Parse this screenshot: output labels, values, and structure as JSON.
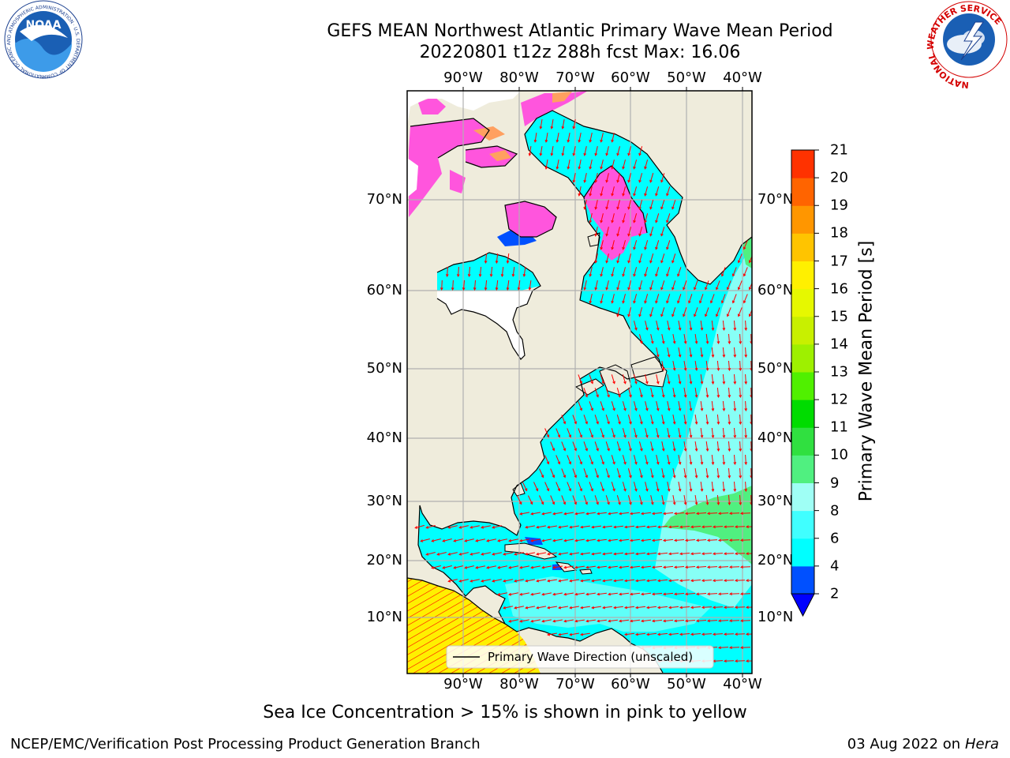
{
  "title": {
    "line1": "GEFS MEAN Northwest Atlantic Primary Wave Mean Period",
    "line2": "20220801 t12z 288h fcst   Max: 16.06"
  },
  "map": {
    "lon_labels": [
      "90°W",
      "80°W",
      "70°W",
      "60°W",
      "50°W",
      "40°W"
    ],
    "lat_labels": [
      "70°N",
      "60°N",
      "50°N",
      "40°N",
      "30°N",
      "20°N",
      "10°N"
    ],
    "legend_label": "Primary Wave Direction (unscaled)",
    "colors": {
      "land": "#efecdc",
      "water_main": "#00ffff",
      "water_light": "#9ffff5",
      "wave_arrow": "#ff0000",
      "ice": "#ff55dd",
      "grid": "#b0b0b0"
    }
  },
  "colorbar": {
    "label": "Primary Wave Mean Period [s]",
    "ticks": [
      "2",
      "4",
      "6",
      "8",
      "9",
      "10",
      "11",
      "12",
      "13",
      "14",
      "15",
      "16",
      "17",
      "18",
      "19",
      "20",
      "21"
    ],
    "colors": [
      "#0050ff",
      "#00ffff",
      "#40ffff",
      "#9ffff5",
      "#50f080",
      "#30e040",
      "#00dc00",
      "#50f000",
      "#9ef000",
      "#c8f000",
      "#e6f800",
      "#fff000",
      "#ffc400",
      "#ff9600",
      "#ff6400",
      "#ff3200",
      "#ff0000"
    ],
    "under_color": "#0000ff"
  },
  "note": "Sea Ice Concentration > 15% is shown in pink to yellow",
  "footer": {
    "left": "NCEP/EMC/Verification Post Processing Product Generation Branch",
    "date": "03 Aug 2022 on",
    "machine": "Hera"
  },
  "logos": {
    "noaa_text": "NOAA",
    "noaa_ring": "NATIONAL OCEANIC AND ATMOSPHERIC ADMINISTRATION · U.S. DEPARTMENT OF COMMERCE ·",
    "nws_ring": "NATIONAL WEATHER SERVICE"
  }
}
